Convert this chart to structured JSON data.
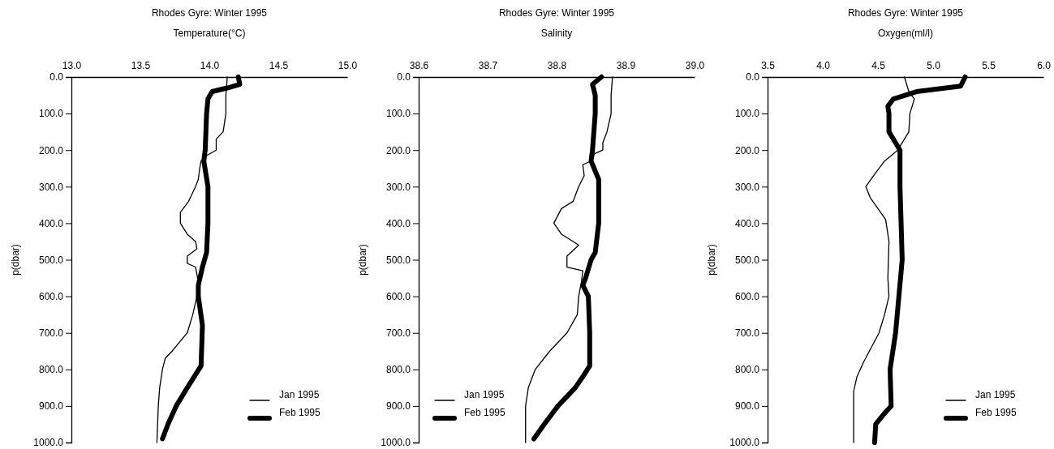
{
  "chart_data": [
    {
      "type": "line",
      "title": "Rhodes Gyre: Winter 1995",
      "xlabel": "Temperature(°C)",
      "ylabel": "p(dbar)",
      "xlim": [
        13,
        15
      ],
      "xticks": [
        {
          "value": 13,
          "label": "13.0"
        },
        {
          "value": 13.5,
          "label": "13.5"
        },
        {
          "value": 14,
          "label": "14.0"
        },
        {
          "value": 14.5,
          "label": "14.5"
        },
        {
          "value": 15,
          "label": "15.0"
        }
      ],
      "ylim": [
        1000,
        0
      ],
      "yticks": [
        {
          "value": 0,
          "label": "0.0"
        },
        {
          "value": 100,
          "label": "100.0"
        },
        {
          "value": 200,
          "label": "200.0"
        },
        {
          "value": 300,
          "label": "300.0"
        },
        {
          "value": 400,
          "label": "400.0"
        },
        {
          "value": 500,
          "label": "500.0"
        },
        {
          "value": 600,
          "label": "600.0"
        },
        {
          "value": 700,
          "label": "700.0"
        },
        {
          "value": 800,
          "label": "800.0"
        },
        {
          "value": 900,
          "label": "900.0"
        },
        {
          "value": 1000,
          "label": "1000.0"
        }
      ],
      "grid": false,
      "legend": "bottom right",
      "marker": "none",
      "line_style": "solid",
      "series": [
        {
          "name": "Jan 1995",
          "color": "#000000",
          "x": [
            14.13,
            14.12,
            14.12,
            14.1,
            14.05,
            14.05,
            13.98,
            13.94,
            13.93,
            13.92,
            13.9,
            13.85,
            13.79,
            13.79,
            13.84,
            13.9,
            13.91,
            13.84,
            13.84,
            13.9,
            13.92,
            13.91,
            13.88,
            13.84,
            13.73,
            13.68,
            13.66,
            13.64,
            13.63,
            13.62
          ],
          "values": [
            0,
            50,
            100,
            150,
            170,
            200,
            215,
            230,
            250,
            280,
            300,
            340,
            370,
            400,
            430,
            450,
            470,
            490,
            510,
            520,
            560,
            600,
            650,
            700,
            750,
            770,
            800,
            850,
            900,
            1000
          ]
        },
        {
          "name": "Feb 1995",
          "color": "#000000",
          "x": [
            14.21,
            14.22,
            14.13,
            14.02,
            13.99,
            13.98,
            13.97,
            13.96,
            13.99,
            13.99,
            13.98,
            13.95,
            13.92,
            13.92,
            13.95,
            13.94,
            13.89,
            13.84,
            13.76,
            13.7,
            13.66
          ],
          "values": [
            0,
            20,
            30,
            40,
            60,
            100,
            200,
            230,
            300,
            400,
            480,
            520,
            570,
            600,
            680,
            790,
            820,
            850,
            900,
            950,
            990
          ]
        }
      ]
    },
    {
      "type": "line",
      "title": "Rhodes Gyre: Winter 1995",
      "xlabel": "Salinity",
      "ylabel": "p(dbar)",
      "xlim": [
        38.6,
        39.0
      ],
      "xticks": [
        {
          "value": 38.6,
          "label": "38.6"
        },
        {
          "value": 38.7,
          "label": "38.7"
        },
        {
          "value": 38.8,
          "label": "38.8"
        },
        {
          "value": 38.9,
          "label": "38.9"
        },
        {
          "value": 39.0,
          "label": "39.0"
        }
      ],
      "ylim": [
        1000,
        0
      ],
      "yticks": [
        {
          "value": 0,
          "label": "0.0"
        },
        {
          "value": 100,
          "label": "100.0"
        },
        {
          "value": 200,
          "label": "200.0"
        },
        {
          "value": 300,
          "label": "300.0"
        },
        {
          "value": 400,
          "label": "400.0"
        },
        {
          "value": 500,
          "label": "500.0"
        },
        {
          "value": 600,
          "label": "600.0"
        },
        {
          "value": 700,
          "label": "700.0"
        },
        {
          "value": 800,
          "label": "800.0"
        },
        {
          "value": 900,
          "label": "900.0"
        },
        {
          "value": 1000,
          "label": "1000.0"
        }
      ],
      "grid": false,
      "legend": "bottom left",
      "marker": "none",
      "line_style": "solid",
      "series": [
        {
          "name": "Jan 1995",
          "color": "#000000",
          "x": [
            38.881,
            38.879,
            38.879,
            38.873,
            38.867,
            38.867,
            38.855,
            38.85,
            38.838,
            38.84,
            38.832,
            38.824,
            38.807,
            38.796,
            38.807,
            38.824,
            38.832,
            38.815,
            38.815,
            38.838,
            38.836,
            38.832,
            38.83,
            38.815,
            38.79,
            38.769,
            38.759,
            38.755,
            38.755
          ],
          "values": [
            0,
            50,
            100,
            150,
            180,
            200,
            210,
            230,
            240,
            270,
            300,
            340,
            360,
            400,
            430,
            450,
            460,
            490,
            520,
            530,
            560,
            600,
            650,
            700,
            750,
            800,
            850,
            900,
            1000
          ]
        },
        {
          "name": "Feb 1995",
          "color": "#000000",
          "x": [
            38.865,
            38.852,
            38.856,
            38.856,
            38.854,
            38.852,
            38.85,
            38.861,
            38.861,
            38.856,
            38.85,
            38.842,
            38.838,
            38.846,
            38.848,
            38.848,
            38.838,
            38.827,
            38.802,
            38.782,
            38.767
          ],
          "values": [
            0,
            20,
            50,
            100,
            150,
            200,
            230,
            280,
            400,
            480,
            500,
            550,
            570,
            600,
            700,
            790,
            820,
            850,
            900,
            950,
            990
          ]
        }
      ]
    },
    {
      "type": "line",
      "title": "Rhodes Gyre: Winter 1995",
      "xlabel": "Oxygen(ml/l)",
      "ylabel": "p(dbar)",
      "xlim": [
        3.5,
        6.0
      ],
      "xticks": [
        {
          "value": 3.5,
          "label": "3.5"
        },
        {
          "value": 4,
          "label": "4.0"
        },
        {
          "value": 4.5,
          "label": "4.5"
        },
        {
          "value": 5,
          "label": "5.0"
        },
        {
          "value": 5.5,
          "label": "5.5"
        },
        {
          "value": 6,
          "label": "6.0"
        }
      ],
      "ylim": [
        1000,
        0
      ],
      "yticks": [
        {
          "value": 0,
          "label": "0.0"
        },
        {
          "value": 100,
          "label": "100.0"
        },
        {
          "value": 200,
          "label": "200.0"
        },
        {
          "value": 300,
          "label": "300.0"
        },
        {
          "value": 400,
          "label": "400.0"
        },
        {
          "value": 500,
          "label": "500.0"
        },
        {
          "value": 600,
          "label": "600.0"
        },
        {
          "value": 700,
          "label": "700.0"
        },
        {
          "value": 800,
          "label": "800.0"
        },
        {
          "value": 900,
          "label": "900.0"
        },
        {
          "value": 1000,
          "label": "1000.0"
        }
      ],
      "grid": false,
      "legend": "bottom right",
      "marker": "none",
      "line_style": "solid",
      "series": [
        {
          "name": "Jan 1995",
          "color": "#000000",
          "x": [
            4.74,
            4.78,
            4.83,
            4.79,
            4.78,
            4.68,
            4.56,
            4.46,
            4.39,
            4.43,
            4.57,
            4.6,
            4.59,
            4.6,
            4.56,
            4.51,
            4.37,
            4.31,
            4.28,
            4.28
          ],
          "values": [
            0,
            40,
            60,
            100,
            150,
            200,
            230,
            270,
            300,
            330,
            390,
            450,
            550,
            600,
            650,
            700,
            780,
            820,
            860,
            1000
          ]
        },
        {
          "name": "Feb 1995",
          "color": "#000000",
          "x": [
            5.29,
            5.25,
            4.85,
            4.64,
            4.59,
            4.6,
            4.6,
            4.66,
            4.7,
            4.7,
            4.72,
            4.69,
            4.66,
            4.61,
            4.62,
            4.56,
            4.48,
            4.47
          ],
          "values": [
            0,
            25,
            40,
            60,
            80,
            100,
            150,
            180,
            200,
            300,
            500,
            600,
            700,
            800,
            900,
            920,
            950,
            1000
          ]
        }
      ]
    }
  ]
}
